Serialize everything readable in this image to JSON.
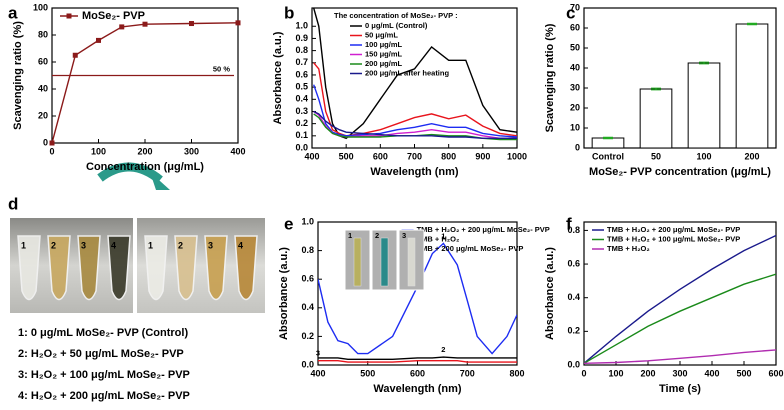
{
  "chart_data": [
    {
      "type": "line",
      "panel_label": "a",
      "xlabel": "Concentration (μg/mL)",
      "ylabel": "Scavenging ratio (%)",
      "x": [
        0,
        50,
        100,
        150,
        200,
        300,
        400
      ],
      "xlim": [
        0,
        400
      ],
      "xticks": [
        0,
        100,
        200,
        300,
        400
      ],
      "ylim": [
        0,
        100
      ],
      "yticks": [
        0,
        20,
        40,
        60,
        80,
        100
      ],
      "markers": true,
      "legend": "top-left",
      "series": [
        {
          "name": "MoSe₂- PVP",
          "color": "#8b1a1a",
          "values": [
            0,
            65,
            76,
            86,
            88,
            88.5,
            89
          ]
        }
      ],
      "reference": {
        "value": 50,
        "label": "50 %",
        "color": "#8b1a1a"
      }
    },
    {
      "type": "line",
      "panel_label": "b",
      "xlabel": "Wavelength (nm)",
      "ylabel": "Absorbance (a.u.)",
      "legend_title": "The concentration of MoSe₂- PVP :",
      "legend": "top-left",
      "x": [
        405,
        420,
        440,
        460,
        480,
        500,
        550,
        600,
        650,
        700,
        750,
        800,
        850,
        900,
        950,
        1000
      ],
      "xlim": [
        400,
        1000
      ],
      "xticks": [
        400,
        500,
        600,
        700,
        800,
        900,
        1000
      ],
      "ylim": [
        0,
        1.15
      ],
      "yticks": [
        {
          "value": 0,
          "label": "0.0"
        },
        0.1,
        0.2,
        0.3,
        0.4,
        0.5,
        0.6,
        0.7,
        0.8,
        0.9,
        {
          "value": 1,
          "label": "1.0"
        }
      ],
      "series": [
        {
          "name": "0 μg/mL (Control)",
          "color": "#000000",
          "values": [
            1.15,
            1.0,
            0.5,
            0.2,
            0.1,
            0.08,
            0.2,
            0.4,
            0.6,
            0.65,
            0.83,
            0.72,
            0.72,
            0.35,
            0.15,
            0.13
          ]
        },
        {
          "name": "50 μg/mL",
          "color": "#e8141c",
          "values": [
            0.7,
            0.65,
            0.3,
            0.15,
            0.12,
            0.1,
            0.12,
            0.15,
            0.2,
            0.25,
            0.28,
            0.24,
            0.27,
            0.18,
            0.12,
            0.1
          ]
        },
        {
          "name": "100 μg/mL",
          "color": "#1d2cf2",
          "values": [
            0.52,
            0.4,
            0.2,
            0.13,
            0.11,
            0.1,
            0.11,
            0.12,
            0.15,
            0.17,
            0.2,
            0.17,
            0.17,
            0.12,
            0.1,
            0.09
          ]
        },
        {
          "name": "150 μg/mL",
          "color": "#d01fd0",
          "values": [
            0.3,
            0.27,
            0.18,
            0.12,
            0.1,
            0.09,
            0.1,
            0.1,
            0.12,
            0.13,
            0.15,
            0.13,
            0.13,
            0.1,
            0.08,
            0.08
          ]
        },
        {
          "name": "200 μg/mL",
          "color": "#1a8a1a",
          "values": [
            0.28,
            0.25,
            0.17,
            0.12,
            0.1,
            0.09,
            0.09,
            0.09,
            0.1,
            0.1,
            0.11,
            0.1,
            0.1,
            0.08,
            0.07,
            0.07
          ]
        },
        {
          "name": "200 μg/mL after heating",
          "color": "#1a1a8c",
          "values": [
            0.3,
            0.28,
            0.22,
            0.18,
            0.15,
            0.13,
            0.12,
            0.11,
            0.1,
            0.1,
            0.1,
            0.09,
            0.09,
            0.08,
            0.08,
            0.08
          ]
        }
      ]
    },
    {
      "type": "bar",
      "panel_label": "c",
      "xlabel": "MoSe₂- PVP concentration (μg/mL)",
      "ylabel": "Scavenging ratio (%)",
      "categories": [
        "Control",
        "50",
        "100",
        "200"
      ],
      "values": [
        5,
        29.5,
        42.5,
        62
      ],
      "errors": [
        0.3,
        0.4,
        0.4,
        0.3
      ],
      "color": "#ffffff",
      "error_color": "#22aa22",
      "ylim": [
        0,
        70
      ],
      "yticks": [
        0,
        10,
        20,
        30,
        40,
        50,
        60,
        70
      ]
    },
    {
      "type": "line",
      "panel_label": "e",
      "xlabel": "Wavelength (nm)",
      "ylabel": "Absorbance (a.u.)",
      "legend": "top-center",
      "x": [
        400,
        420,
        440,
        460,
        480,
        500,
        550,
        600,
        630,
        652,
        680,
        700,
        720,
        750,
        780,
        800
      ],
      "xlim": [
        400,
        800
      ],
      "xticks": [
        400,
        500,
        600,
        700,
        800
      ],
      "ylim": [
        0,
        1
      ],
      "yticks": [
        {
          "value": 0,
          "label": "0.0"
        },
        0.2,
        0.4,
        0.6,
        0.8,
        {
          "value": 1,
          "label": "1.0"
        }
      ],
      "inset_labels": [
        "1",
        "2",
        "3"
      ],
      "series": [
        {
          "name": "TMB + H₂O₂ + 200 μg/mL MoSe₂- PVP",
          "tag": "1",
          "color": "#1d2cf2",
          "values": [
            0.6,
            0.3,
            0.17,
            0.15,
            0.08,
            0.08,
            0.2,
            0.55,
            0.78,
            0.85,
            0.7,
            0.45,
            0.2,
            0.08,
            0.2,
            0.35
          ]
        },
        {
          "name": "TMB + H₂O₂",
          "tag": "2",
          "color": "#000000",
          "values": [
            0.05,
            0.05,
            0.05,
            0.04,
            0.04,
            0.04,
            0.04,
            0.05,
            0.05,
            0.055,
            0.05,
            0.05,
            0.05,
            0.05,
            0.05,
            0.05
          ]
        },
        {
          "name": "TMB + 200 μg/mL MoSe₂- PVP",
          "tag": "3",
          "color": "#e8141c",
          "values": [
            0.03,
            0.03,
            0.03,
            0.02,
            0.02,
            0.02,
            0.02,
            0.03,
            0.03,
            0.03,
            0.03,
            0.02,
            0.02,
            0.02,
            0.02,
            0.02
          ]
        }
      ]
    },
    {
      "type": "line",
      "panel_label": "f",
      "xlabel": "Time (s)",
      "ylabel": "Absorbance (a.u.)",
      "legend": "top-left",
      "x": [
        0,
        100,
        200,
        300,
        400,
        500,
        600
      ],
      "xlim": [
        0,
        600
      ],
      "xticks": [
        0,
        100,
        200,
        300,
        400,
        500,
        600
      ],
      "ylim": [
        0,
        0.85
      ],
      "yticks": [
        {
          "value": 0,
          "label": "0.0"
        },
        0.2,
        0.4,
        0.6,
        0.8
      ],
      "series": [
        {
          "name": "TMB + H₂O₂ + 200 μg/mL MoSe₂- PVP",
          "color": "#1a1a8c",
          "values": [
            0.01,
            0.17,
            0.32,
            0.45,
            0.57,
            0.68,
            0.77
          ]
        },
        {
          "name": "TMB + H₂O₂ + 100 μg/mL MoSe₂- PVP",
          "color": "#1a8a1a",
          "values": [
            0.01,
            0.12,
            0.23,
            0.32,
            0.4,
            0.48,
            0.54
          ]
        },
        {
          "name": "TMB + H₂O₂",
          "color": "#b02cb0",
          "values": [
            0.01,
            0.015,
            0.025,
            0.04,
            0.055,
            0.075,
            0.09
          ]
        }
      ]
    }
  ],
  "panel_d": {
    "panel_label": "d",
    "tube_labels": [
      "1",
      "2",
      "3",
      "4"
    ],
    "legend": [
      "1: 0 μg/mL MoSe₂- PVP (Control)",
      "2: H₂O₂ + 50 μg/mL MoSe₂- PVP",
      "3: H₂O₂ + 100 μg/mL MoSe₂- PVP",
      "4: H₂O₂ + 200 μg/mL MoSe₂- PVP"
    ]
  }
}
